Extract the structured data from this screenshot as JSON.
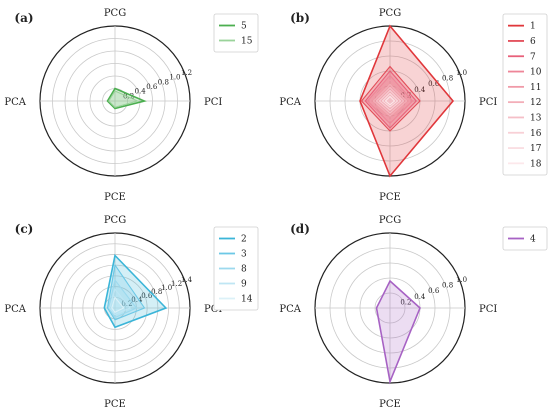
{
  "chart_data": [
    {
      "type": "radar",
      "panel": "(a)",
      "axes": [
        "PCG",
        "PCI",
        "PCE",
        "PCA"
      ],
      "rlim": [
        0,
        1.2
      ],
      "rticks": [
        0.2,
        0.4,
        0.6,
        0.8,
        1.0,
        1.2
      ],
      "rtick_labels": [
        "0.2",
        "0.4",
        "0.6",
        "0.8",
        "1.0",
        "1.2"
      ],
      "grid": true,
      "legend": "top-right",
      "series": [
        {
          "name": "5",
          "color": "#4caf50",
          "values": [
            0.2,
            0.47,
            0.12,
            0.12
          ]
        },
        {
          "name": "15",
          "color": "#9ad39a",
          "values": [
            0.16,
            0.36,
            0.1,
            0.1
          ]
        }
      ]
    },
    {
      "type": "radar",
      "panel": "(b)",
      "axes": [
        "PCG",
        "PCI",
        "PCE",
        "PCA"
      ],
      "rlim": [
        0,
        1.0
      ],
      "rticks": [
        0.2,
        0.4,
        0.6,
        0.8,
        1.0
      ],
      "rtick_labels": [
        "0.2",
        "0.4",
        "0.6",
        "0.8",
        "1.0"
      ],
      "grid": true,
      "legend": "top-right",
      "series": [
        {
          "name": "1",
          "color": "#e0373b",
          "values": [
            1.0,
            0.84,
            1.0,
            0.4
          ]
        },
        {
          "name": "6",
          "color": "#e24c58",
          "values": [
            0.46,
            0.4,
            0.4,
            0.38
          ]
        },
        {
          "name": "7",
          "color": "#e8607a",
          "values": [
            0.4,
            0.35,
            0.36,
            0.33
          ]
        },
        {
          "name": "10",
          "color": "#ee8598",
          "values": [
            0.34,
            0.3,
            0.3,
            0.3
          ]
        },
        {
          "name": "11",
          "color": "#f09aa8",
          "values": [
            0.28,
            0.26,
            0.26,
            0.26
          ]
        },
        {
          "name": "12",
          "color": "#f3aeb8",
          "values": [
            0.22,
            0.22,
            0.2,
            0.22
          ]
        },
        {
          "name": "13",
          "color": "#f5bfc7",
          "values": [
            0.18,
            0.18,
            0.16,
            0.18
          ]
        },
        {
          "name": "16",
          "color": "#f8d0d6",
          "values": [
            0.14,
            0.14,
            0.12,
            0.14
          ]
        },
        {
          "name": "17",
          "color": "#fadde1",
          "values": [
            0.1,
            0.1,
            0.08,
            0.1
          ]
        },
        {
          "name": "18",
          "color": "#fce8eb",
          "values": [
            0.06,
            0.06,
            0.05,
            0.06
          ]
        }
      ]
    },
    {
      "type": "radar",
      "panel": "(c)",
      "axes": [
        "PCG",
        "PCI",
        "PCE",
        "PCA"
      ],
      "rlim": [
        0,
        1.4
      ],
      "rticks": [
        0.2,
        0.4,
        0.6,
        0.8,
        1.0,
        1.2,
        1.4
      ],
      "rtick_labels": [
        "0.2",
        "0.4",
        "0.6",
        "0.8",
        "1.0",
        "1.2",
        "1.4"
      ],
      "grid": true,
      "legend": "top-right",
      "series": [
        {
          "name": "2",
          "color": "#3bb5d8",
          "values": [
            0.98,
            0.95,
            0.36,
            0.2
          ]
        },
        {
          "name": "3",
          "color": "#6cc8e6",
          "values": [
            0.8,
            0.55,
            0.22,
            0.14
          ]
        },
        {
          "name": "8",
          "color": "#9cd9ee",
          "values": [
            0.52,
            0.4,
            0.18,
            0.12
          ]
        },
        {
          "name": "9",
          "color": "#bfe6f4",
          "values": [
            0.35,
            0.28,
            0.12,
            0.1
          ]
        },
        {
          "name": "14",
          "color": "#dcf1f8",
          "values": [
            0.2,
            0.16,
            0.08,
            0.06
          ]
        }
      ]
    },
    {
      "type": "radar",
      "panel": "(d)",
      "axes": [
        "PCG",
        "PCI",
        "PCE",
        "PCA"
      ],
      "rlim": [
        0,
        1.0
      ],
      "rticks": [
        0.2,
        0.4,
        0.6,
        0.8,
        1.0
      ],
      "rtick_labels": [
        "0.2",
        "0.4",
        "0.6",
        "0.8",
        "1.0"
      ],
      "grid": true,
      "legend": "top-right",
      "series": [
        {
          "name": "4",
          "color": "#a762c4",
          "values": [
            0.36,
            0.4,
            0.98,
            0.18
          ]
        }
      ]
    }
  ]
}
